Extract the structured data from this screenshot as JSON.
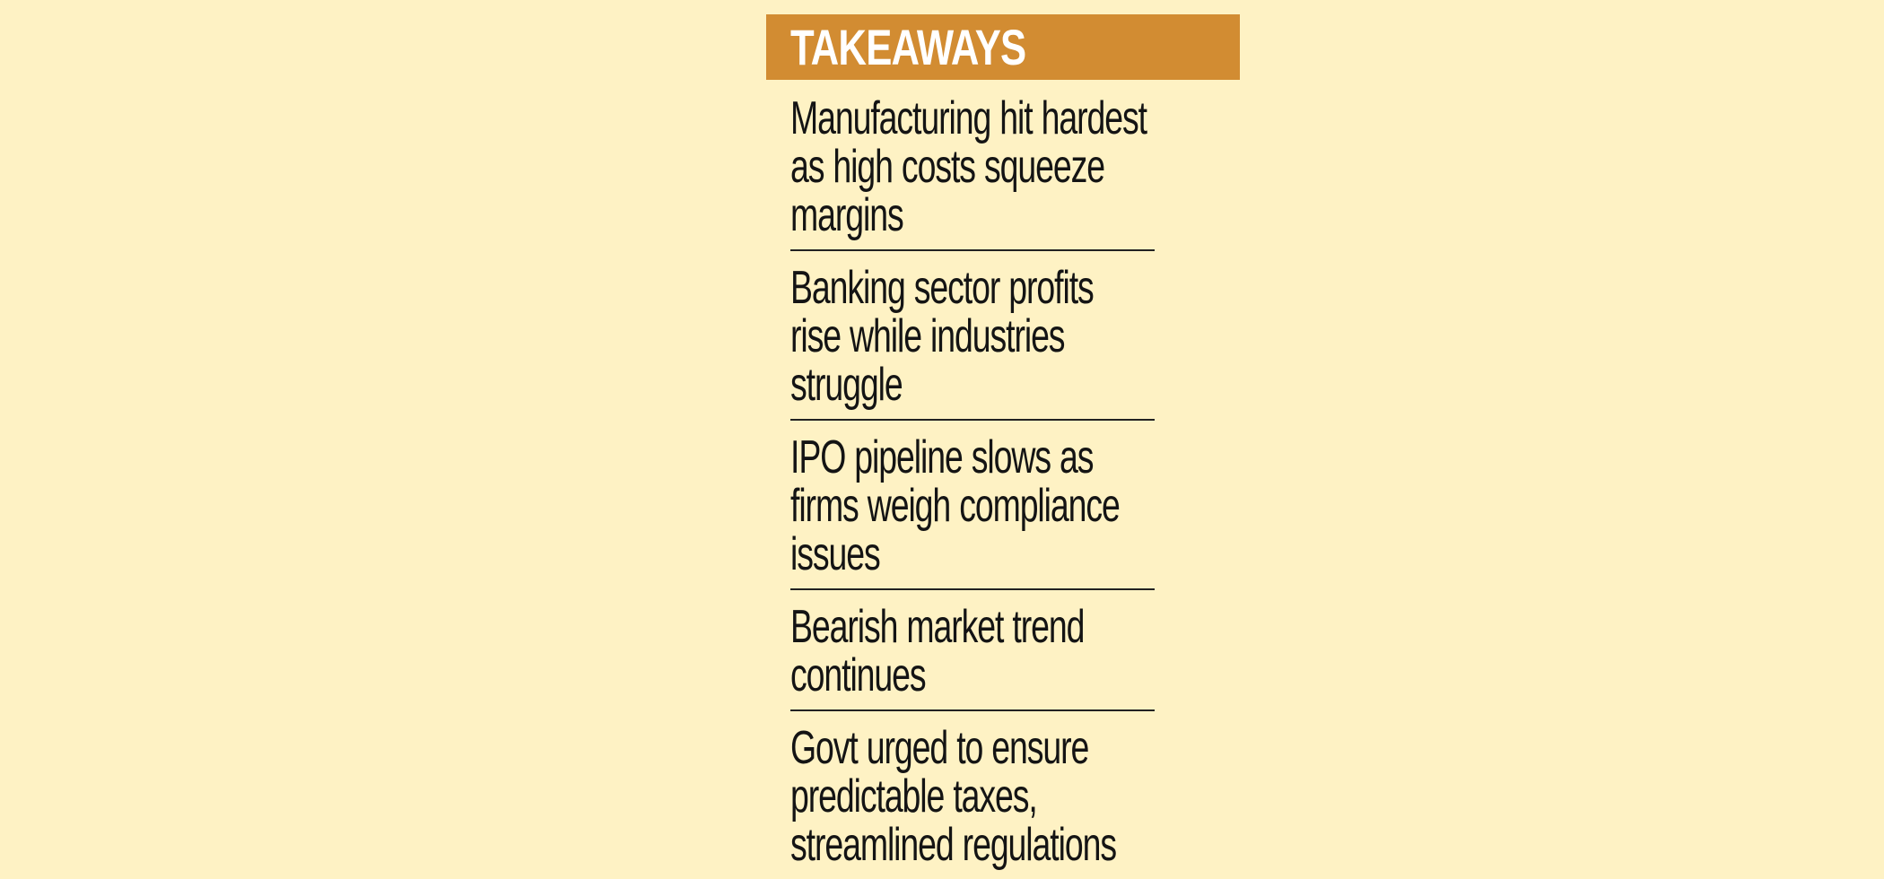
{
  "title": "TAKEAWAYS",
  "colors": {
    "background": "#fef2c4",
    "header_background": "#d28c32",
    "header_text": "#ffffff",
    "body_text": "#141414",
    "divider": "#222222"
  },
  "items": [
    {
      "text": "Manufacturing hit hardest as high costs squeeze margins"
    },
    {
      "text": "Banking sector profits rise while industries struggle"
    },
    {
      "text": "IPO pipeline slows as firms weigh compliance issues"
    },
    {
      "text": "Bearish market trend continues"
    },
    {
      "text": "Govt urged to ensure predictable taxes, streamlined regulations"
    }
  ]
}
